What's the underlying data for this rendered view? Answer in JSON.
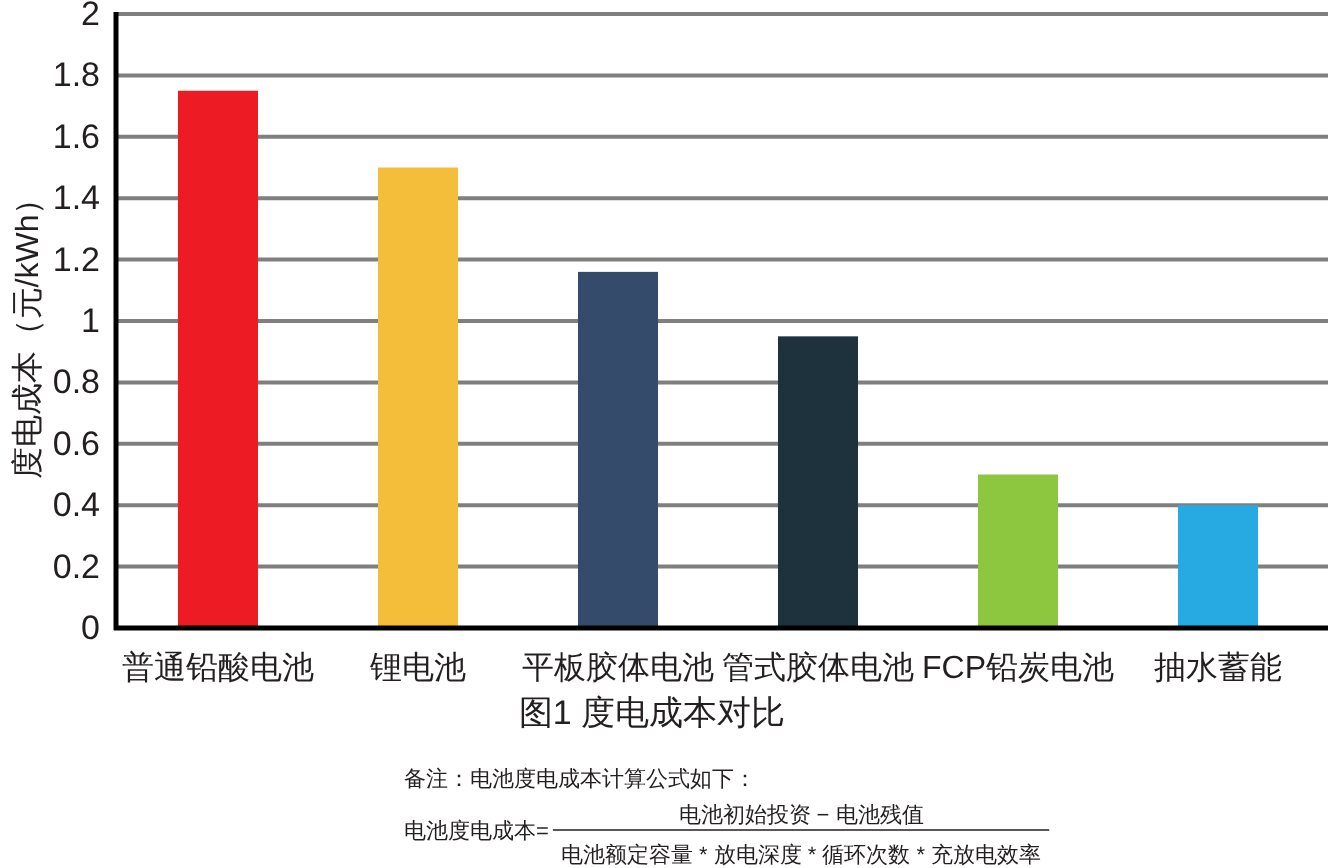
{
  "chart_data": {
    "type": "bar",
    "title": "图1 度电成本对比",
    "ylabel": "度电成本（元/kWh）",
    "categories": [
      "普通铅酸电池",
      "锂电池",
      "平板胶体电池",
      "管式胶体电池",
      "FCP铅炭电池",
      "抽水蓄能"
    ],
    "values": [
      1.75,
      1.5,
      1.16,
      0.95,
      0.5,
      0.4
    ],
    "colors": [
      "#ed1c24",
      "#f4bd3a",
      "#344b6b",
      "#1d323c",
      "#8dc63f",
      "#27aae1"
    ],
    "ylim": [
      0,
      2
    ],
    "yticks": [
      0,
      0.2,
      0.4,
      0.6,
      0.8,
      1,
      1.2,
      1.4,
      1.6,
      1.8,
      2
    ],
    "grid": "y",
    "annotations": [
      "备注：电池度电成本计算公式如下：",
      "电池度电成本=",
      "电池初始投资 − 电池残值",
      "电池额定容量 * 放电深度 * 循环次数 * 充放电效率"
    ]
  }
}
